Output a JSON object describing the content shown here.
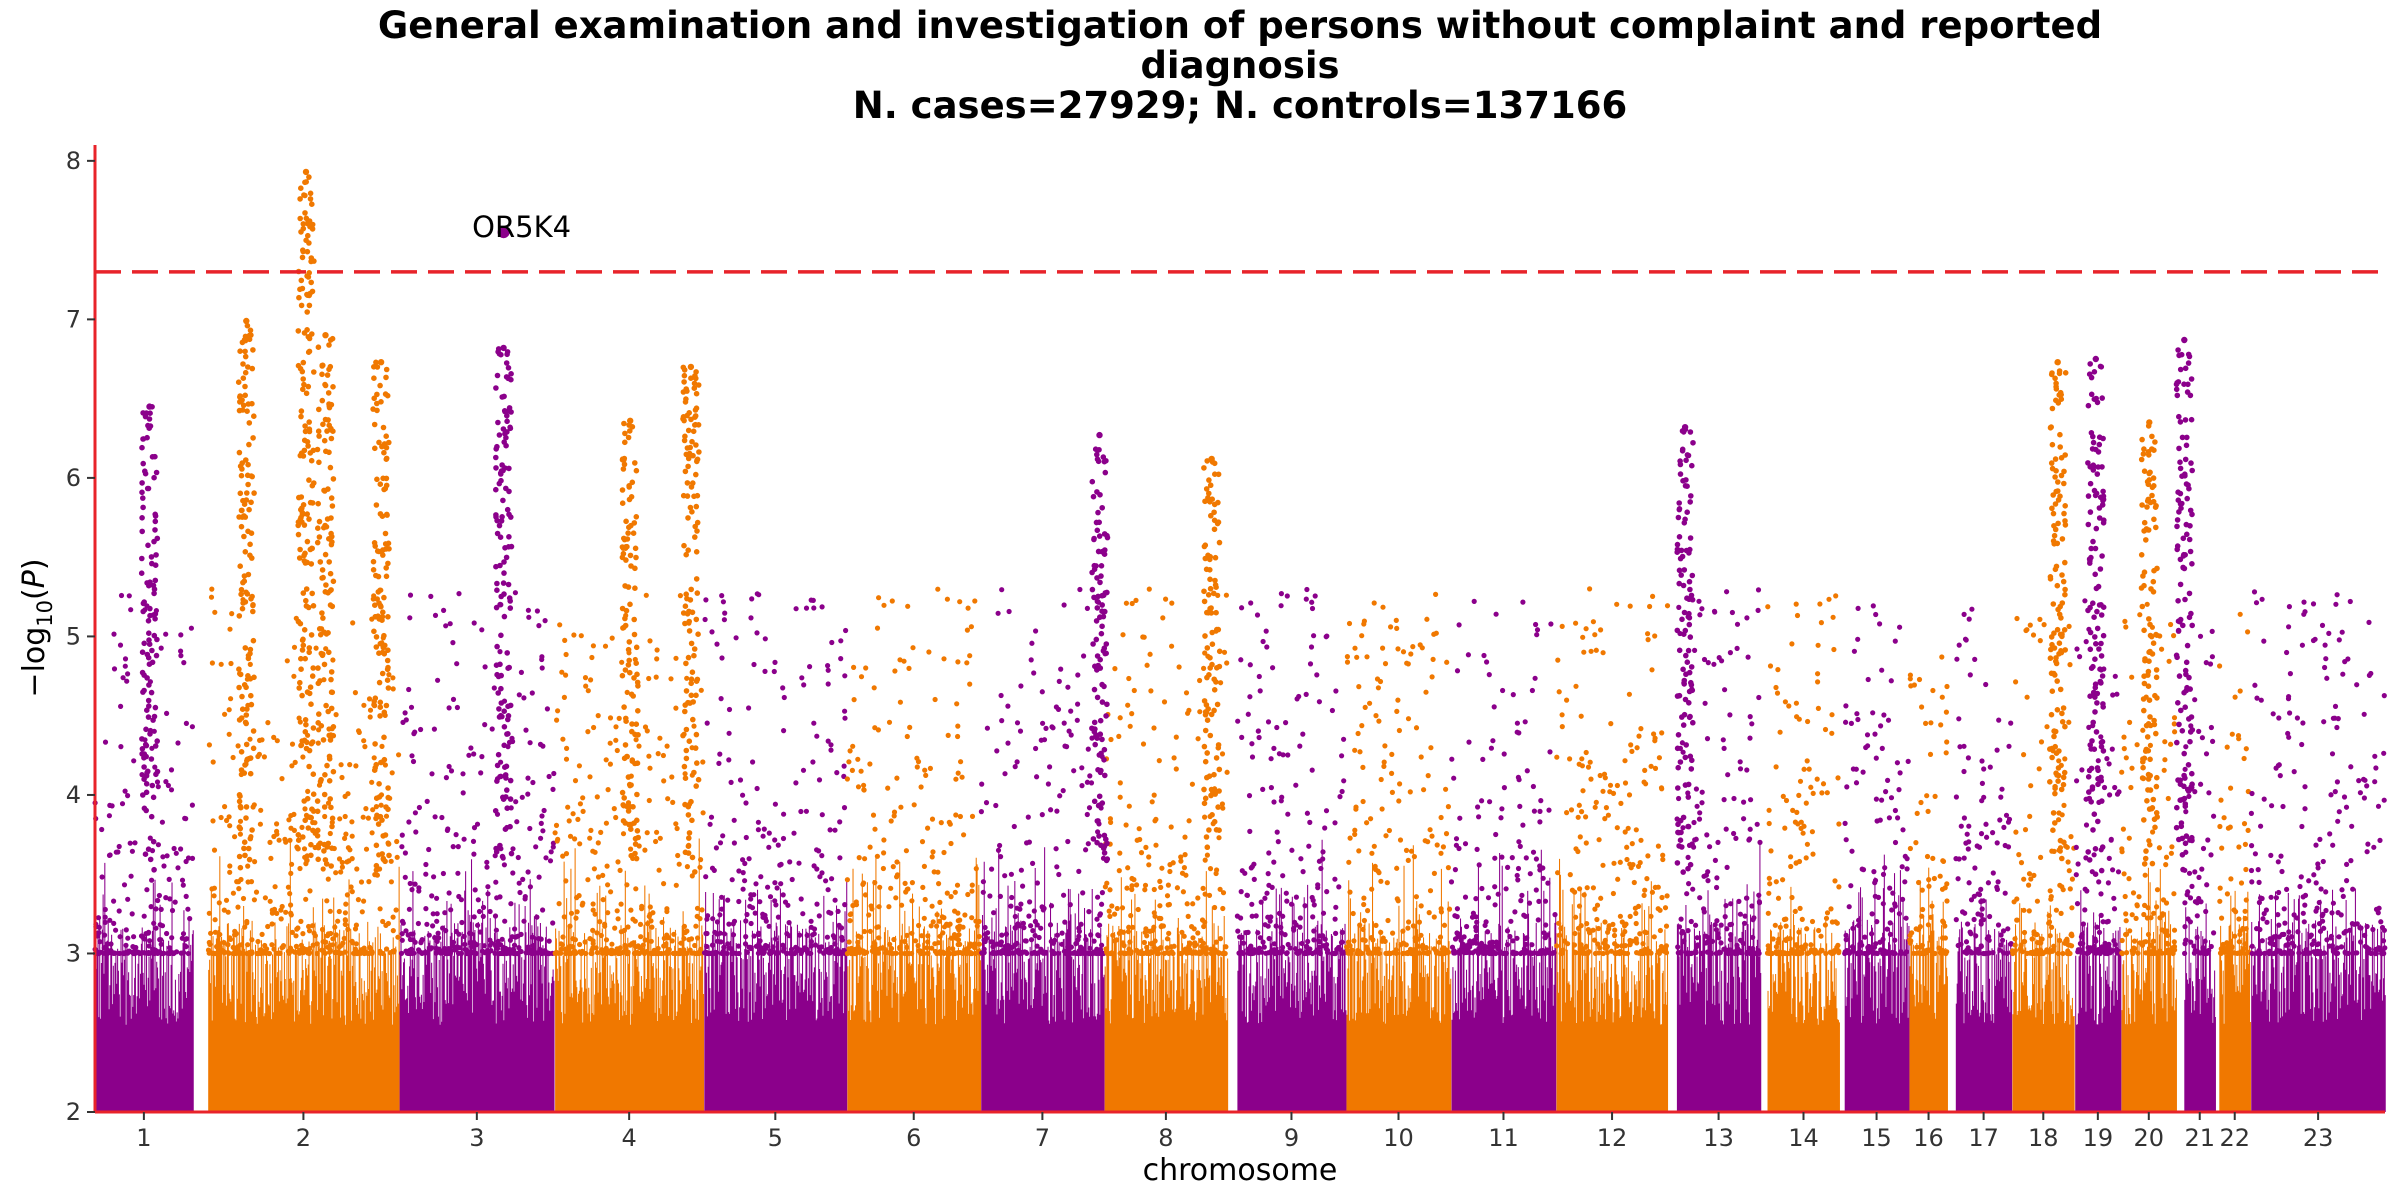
{
  "chart_data": {
    "type": "scatter",
    "title_lines": [
      "General examination and investigation of persons without complaint and reported",
      "diagnosis",
      "N. cases=27929; N. controls=137166"
    ],
    "xlabel": "chromosome",
    "ylabel": "−log₁₀(P)",
    "ylim": [
      2,
      8.1
    ],
    "yticks": [
      2,
      3,
      4,
      5,
      6,
      7,
      8
    ],
    "grid": false,
    "threshold": 7.3,
    "threshold_color": "#e8232a",
    "axis_color": "#e8232a",
    "colors": [
      "#8b008b",
      "#f07800"
    ],
    "chromosomes": [
      {
        "label": "1",
        "x0": 0,
        "x1": 95
      },
      {
        "label": "2",
        "x0": 110,
        "x1": 295
      },
      {
        "label": "3",
        "x0": 296,
        "x1": 446
      },
      {
        "label": "4",
        "x0": 447,
        "x1": 591
      },
      {
        "label": "5",
        "x0": 592,
        "x1": 730
      },
      {
        "label": "6",
        "x0": 731,
        "x1": 860
      },
      {
        "label": "7",
        "x0": 861,
        "x1": 980
      },
      {
        "label": "8",
        "x0": 981,
        "x1": 1100
      },
      {
        "label": "9",
        "x0": 1110,
        "x1": 1215
      },
      {
        "label": "10",
        "x0": 1216,
        "x1": 1317
      },
      {
        "label": "11",
        "x0": 1318,
        "x1": 1419
      },
      {
        "label": "12",
        "x0": 1420,
        "x1": 1528
      },
      {
        "label": "13",
        "x0": 1537,
        "x1": 1618
      },
      {
        "label": "14",
        "x0": 1625,
        "x1": 1695
      },
      {
        "label": "15",
        "x0": 1700,
        "x1": 1762
      },
      {
        "label": "16",
        "x0": 1763,
        "x1": 1800
      },
      {
        "label": "17",
        "x0": 1808,
        "x1": 1862
      },
      {
        "label": "18",
        "x0": 1863,
        "x1": 1923
      },
      {
        "label": "19",
        "x0": 1924,
        "x1": 1968
      },
      {
        "label": "20",
        "x0": 1969,
        "x1": 2022
      },
      {
        "label": "21",
        "x0": 2030,
        "x1": 2060
      },
      {
        "label": "22",
        "x0": 2064,
        "x1": 2094
      },
      {
        "label": "23",
        "x0": 2095,
        "x1": 2225
      }
    ],
    "peaks": [
      {
        "x": 205,
        "ymax": 7.93
      },
      {
        "x": 224,
        "ymax": 6.9
      },
      {
        "x": 278,
        "ymax": 6.73
      },
      {
        "x": 397,
        "ymax": 6.82
      },
      {
        "x": 520,
        "ymax": 6.36
      },
      {
        "x": 579,
        "ymax": 6.7
      },
      {
        "x": 53,
        "ymax": 6.45
      },
      {
        "x": 147,
        "ymax": 6.99
      },
      {
        "x": 976,
        "ymax": 6.27
      },
      {
        "x": 1085,
        "ymax": 6.12
      },
      {
        "x": 1545,
        "ymax": 6.32
      },
      {
        "x": 1907,
        "ymax": 6.73
      },
      {
        "x": 1944,
        "ymax": 6.75
      },
      {
        "x": 2030,
        "ymax": 6.87
      },
      {
        "x": 1996,
        "ymax": 6.35
      }
    ],
    "annotation": {
      "label": "OR5K4",
      "x": 397,
      "y": 7.55
    }
  }
}
